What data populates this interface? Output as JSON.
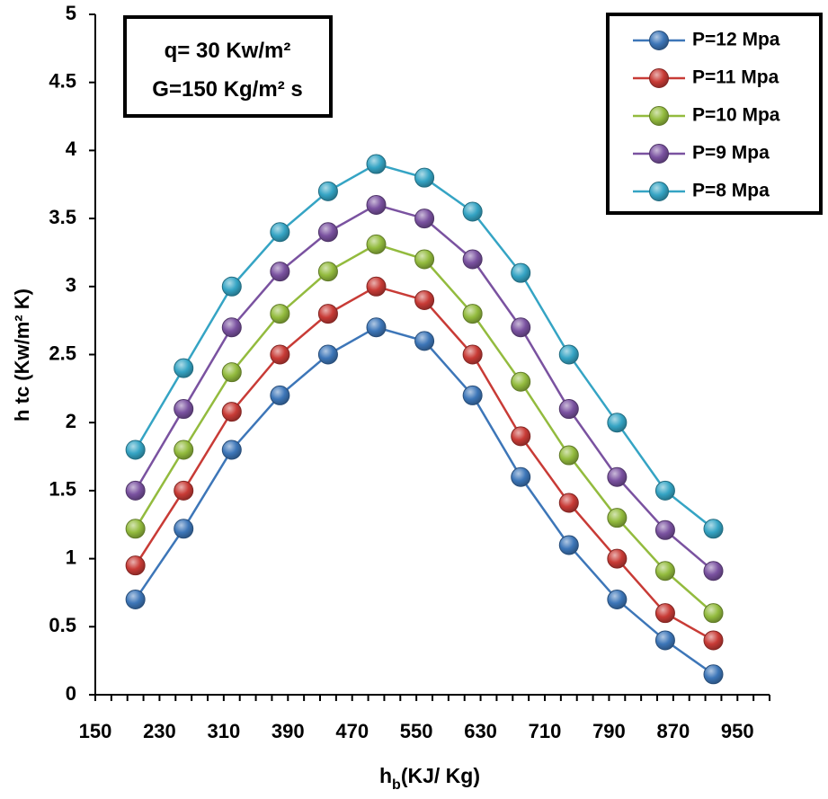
{
  "chart_data": {
    "type": "line",
    "title": "",
    "xlabel": "h",
    "xlabel_sub": "b",
    "xlabel_rest": "(KJ/ Kg)",
    "ylabel": "h tc (Kw/m² K)",
    "xlim": [
      150,
      990
    ],
    "ylim": [
      0,
      5
    ],
    "x_ticks": [
      150,
      230,
      310,
      390,
      470,
      550,
      630,
      710,
      790,
      870,
      950
    ],
    "y_ticks": [
      0,
      0.5,
      1,
      1.5,
      2,
      2.5,
      3,
      3.5,
      4,
      4.5,
      5
    ],
    "grid": false,
    "legend_position": "top-right",
    "annotation": {
      "line1": "q= 30 Kw/m²",
      "line2": "G=150 Kg/m² s"
    },
    "x": [
      200,
      260,
      320,
      380,
      440,
      500,
      560,
      620,
      680,
      740,
      800,
      860,
      920
    ],
    "series": [
      {
        "name": "P=12 Mpa",
        "color": "#3d76b8",
        "values": [
          0.7,
          1.22,
          1.8,
          2.2,
          2.5,
          2.7,
          2.6,
          2.2,
          1.6,
          1.1,
          0.7,
          0.4,
          0.15
        ]
      },
      {
        "name": "P=11 Mpa",
        "color": "#c83b36",
        "values": [
          0.95,
          1.5,
          2.08,
          2.5,
          2.8,
          3.0,
          2.9,
          2.5,
          1.9,
          1.41,
          1.0,
          0.6,
          0.4
        ]
      },
      {
        "name": "P=10 Mpa",
        "color": "#93bb3e",
        "values": [
          1.22,
          1.8,
          2.37,
          2.8,
          3.11,
          3.31,
          3.2,
          2.8,
          2.3,
          1.76,
          1.3,
          0.91,
          0.6
        ]
      },
      {
        "name": "P=9 Mpa",
        "color": "#7a52a0",
        "values": [
          1.5,
          2.1,
          2.7,
          3.11,
          3.4,
          3.6,
          3.5,
          3.2,
          2.7,
          2.1,
          1.6,
          1.21,
          0.91
        ]
      },
      {
        "name": "P=8 Mpa",
        "color": "#35a4c4",
        "values": [
          1.8,
          2.4,
          3.0,
          3.4,
          3.7,
          3.9,
          3.8,
          3.55,
          3.1,
          2.5,
          2.0,
          1.5,
          1.22
        ]
      }
    ]
  }
}
